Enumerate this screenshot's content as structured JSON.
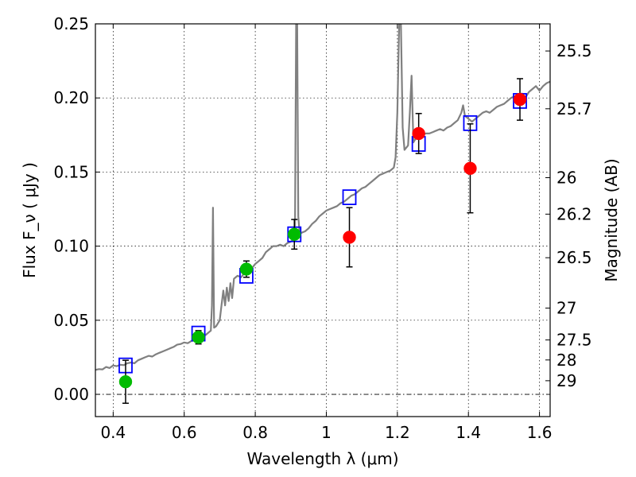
{
  "chart_data": {
    "type": "scatter",
    "xlabel": "Wavelength  λ (μm)",
    "ylabel": "Flux  F_ν  ( μJy )",
    "ylabel_right": "Magnitude (AB)",
    "xlim": [
      0.35,
      1.63
    ],
    "ylim": [
      -0.015,
      0.25
    ],
    "x_ticks": [
      {
        "value": 0.4,
        "label": "0.4"
      },
      {
        "value": 0.6,
        "label": "0.6"
      },
      {
        "value": 0.8,
        "label": "0.8"
      },
      {
        "value": 1.0,
        "label": "1"
      },
      {
        "value": 1.2,
        "label": "1.2"
      },
      {
        "value": 1.4,
        "label": "1.4"
      },
      {
        "value": 1.6,
        "label": "1.6"
      }
    ],
    "y_ticks": [
      {
        "value": 0.0,
        "label": "0.00"
      },
      {
        "value": 0.05,
        "label": "0.05"
      },
      {
        "value": 0.1,
        "label": "0.10"
      },
      {
        "value": 0.15,
        "label": "0.15"
      },
      {
        "value": 0.2,
        "label": "0.20"
      },
      {
        "value": 0.25,
        "label": "0.25"
      }
    ],
    "right_ticks": [
      {
        "label": "25.5",
        "flux": 0.2317
      },
      {
        "label": "25.7",
        "flux": 0.1927
      },
      {
        "label": "26",
        "flux": 0.1462
      },
      {
        "label": "26.2",
        "flux": 0.1216
      },
      {
        "label": "26.5",
        "flux": 0.0922
      },
      {
        "label": "27",
        "flux": 0.0582
      },
      {
        "label": "27.5",
        "flux": 0.0367
      },
      {
        "label": "28",
        "flux": 0.0232
      },
      {
        "label": "29",
        "flux": 0.0092
      }
    ],
    "grid": true,
    "zero_line": true,
    "series": [
      {
        "style": "line",
        "color": "#808080",
        "points": [
          [
            0.35,
            0.0165
          ],
          [
            0.36,
            0.017
          ],
          [
            0.37,
            0.0168
          ],
          [
            0.38,
            0.0185
          ],
          [
            0.39,
            0.0178
          ],
          [
            0.4,
            0.0195
          ],
          [
            0.41,
            0.019
          ],
          [
            0.42,
            0.02
          ],
          [
            0.43,
            0.0197
          ],
          [
            0.44,
            0.021
          ],
          [
            0.45,
            0.0215
          ],
          [
            0.46,
            0.021
          ],
          [
            0.47,
            0.023
          ],
          [
            0.48,
            0.024
          ],
          [
            0.49,
            0.025
          ],
          [
            0.5,
            0.026
          ],
          [
            0.51,
            0.0255
          ],
          [
            0.52,
            0.027
          ],
          [
            0.53,
            0.028
          ],
          [
            0.54,
            0.029
          ],
          [
            0.55,
            0.03
          ],
          [
            0.56,
            0.031
          ],
          [
            0.57,
            0.032
          ],
          [
            0.58,
            0.0335
          ],
          [
            0.59,
            0.034
          ],
          [
            0.6,
            0.035
          ],
          [
            0.61,
            0.0345
          ],
          [
            0.62,
            0.036
          ],
          [
            0.63,
            0.0365
          ],
          [
            0.64,
            0.038
          ],
          [
            0.65,
            0.0385
          ],
          [
            0.66,
            0.04
          ],
          [
            0.67,
            0.042
          ],
          [
            0.675,
            0.043
          ],
          [
            0.678,
            0.06
          ],
          [
            0.681,
            0.126
          ],
          [
            0.684,
            0.045
          ],
          [
            0.69,
            0.046
          ],
          [
            0.7,
            0.05
          ],
          [
            0.705,
            0.06
          ],
          [
            0.71,
            0.07
          ],
          [
            0.715,
            0.06
          ],
          [
            0.72,
            0.072
          ],
          [
            0.725,
            0.063
          ],
          [
            0.73,
            0.075
          ],
          [
            0.735,
            0.065
          ],
          [
            0.74,
            0.078
          ],
          [
            0.75,
            0.08
          ],
          [
            0.76,
            0.079
          ],
          [
            0.77,
            0.082
          ],
          [
            0.78,
            0.084
          ],
          [
            0.79,
            0.085
          ],
          [
            0.8,
            0.088
          ],
          [
            0.81,
            0.09
          ],
          [
            0.82,
            0.092
          ],
          [
            0.83,
            0.096
          ],
          [
            0.84,
            0.098
          ],
          [
            0.85,
            0.1
          ],
          [
            0.86,
            0.1
          ],
          [
            0.87,
            0.101
          ],
          [
            0.88,
            0.1
          ],
          [
            0.89,
            0.102
          ],
          [
            0.9,
            0.103
          ],
          [
            0.905,
            0.104
          ],
          [
            0.91,
            0.106
          ],
          [
            0.912,
            0.115
          ],
          [
            0.915,
            0.25
          ],
          [
            0.918,
            0.25
          ],
          [
            0.921,
            0.12
          ],
          [
            0.925,
            0.108
          ],
          [
            0.93,
            0.109
          ],
          [
            0.94,
            0.11
          ],
          [
            0.95,
            0.112
          ],
          [
            0.96,
            0.115
          ],
          [
            0.97,
            0.117
          ],
          [
            0.98,
            0.12
          ],
          [
            0.99,
            0.122
          ],
          [
            1.0,
            0.124
          ],
          [
            1.01,
            0.125
          ],
          [
            1.02,
            0.126
          ],
          [
            1.03,
            0.127
          ],
          [
            1.04,
            0.129
          ],
          [
            1.05,
            0.13
          ],
          [
            1.06,
            0.132
          ],
          [
            1.07,
            0.134
          ],
          [
            1.08,
            0.135
          ],
          [
            1.09,
            0.137
          ],
          [
            1.1,
            0.139
          ],
          [
            1.11,
            0.14
          ],
          [
            1.12,
            0.142
          ],
          [
            1.13,
            0.144
          ],
          [
            1.14,
            0.146
          ],
          [
            1.15,
            0.148
          ],
          [
            1.16,
            0.149
          ],
          [
            1.17,
            0.15
          ],
          [
            1.18,
            0.151
          ],
          [
            1.19,
            0.153
          ],
          [
            1.195,
            0.16
          ],
          [
            1.2,
            0.19
          ],
          [
            1.205,
            0.25
          ],
          [
            1.21,
            0.25
          ],
          [
            1.215,
            0.18
          ],
          [
            1.22,
            0.165
          ],
          [
            1.23,
            0.168
          ],
          [
            1.235,
            0.19
          ],
          [
            1.24,
            0.215
          ],
          [
            1.245,
            0.17
          ],
          [
            1.25,
            0.172
          ],
          [
            1.26,
            0.174
          ],
          [
            1.27,
            0.175
          ],
          [
            1.28,
            0.176
          ],
          [
            1.29,
            0.176
          ],
          [
            1.3,
            0.177
          ],
          [
            1.31,
            0.178
          ],
          [
            1.32,
            0.179
          ],
          [
            1.33,
            0.178
          ],
          [
            1.34,
            0.18
          ],
          [
            1.35,
            0.181
          ],
          [
            1.36,
            0.183
          ],
          [
            1.37,
            0.185
          ],
          [
            1.38,
            0.19
          ],
          [
            1.385,
            0.195
          ],
          [
            1.39,
            0.188
          ],
          [
            1.4,
            0.186
          ],
          [
            1.41,
            0.184
          ],
          [
            1.42,
            0.186
          ],
          [
            1.43,
            0.188
          ],
          [
            1.44,
            0.19
          ],
          [
            1.45,
            0.191
          ],
          [
            1.46,
            0.19
          ],
          [
            1.47,
            0.192
          ],
          [
            1.48,
            0.194
          ],
          [
            1.49,
            0.195
          ],
          [
            1.5,
            0.196
          ],
          [
            1.51,
            0.198
          ],
          [
            1.52,
            0.2
          ],
          [
            1.53,
            0.201
          ],
          [
            1.54,
            0.202
          ],
          [
            1.55,
            0.203
          ],
          [
            1.56,
            0.2
          ],
          [
            1.57,
            0.204
          ],
          [
            1.58,
            0.206
          ],
          [
            1.59,
            0.208
          ],
          [
            1.6,
            0.205
          ],
          [
            1.61,
            0.208
          ],
          [
            1.62,
            0.21
          ],
          [
            1.63,
            0.211
          ]
        ]
      },
      {
        "style": "square-open",
        "color": "#0000ff",
        "points": [
          [
            0.435,
            0.0195
          ],
          [
            0.64,
            0.041
          ],
          [
            0.775,
            0.08
          ],
          [
            0.91,
            0.108
          ],
          [
            1.065,
            0.133
          ],
          [
            1.26,
            0.169
          ],
          [
            1.405,
            0.183
          ],
          [
            1.545,
            0.198
          ]
        ]
      },
      {
        "style": "circle-filled",
        "color": "#00bb00",
        "points": [
          {
            "x": 0.435,
            "y": 0.0085,
            "err": 0.0145
          },
          {
            "x": 0.64,
            "y": 0.0385,
            "err": 0.0045
          },
          {
            "x": 0.775,
            "y": 0.0845,
            "err": 0.0055
          },
          {
            "x": 0.91,
            "y": 0.108,
            "err": 0.01
          }
        ]
      },
      {
        "style": "circle-filled",
        "color": "#ff0000",
        "points": [
          {
            "x": 1.065,
            "y": 0.106,
            "err": 0.02
          },
          {
            "x": 1.26,
            "y": 0.176,
            "err": 0.0135
          },
          {
            "x": 1.405,
            "y": 0.1525,
            "err": 0.03
          },
          {
            "x": 1.545,
            "y": 0.199,
            "err": 0.014
          }
        ]
      }
    ]
  }
}
